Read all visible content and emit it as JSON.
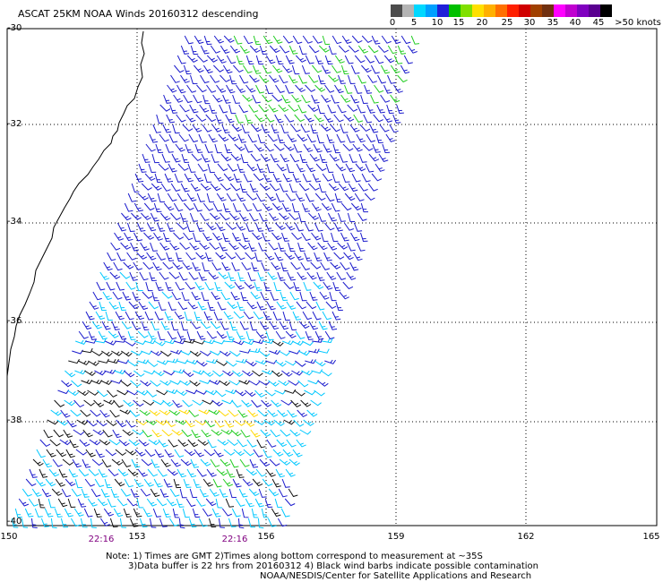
{
  "title": "ASCAT 25KM NOAA Winds 20160312 descending",
  "legend": {
    "colors": [
      "#4c4c4c",
      "#b4b4b4",
      "#00d8ff",
      "#00a0ff",
      "#2020d8",
      "#00c000",
      "#80e000",
      "#ffe000",
      "#ffb000",
      "#ff7000",
      "#ff2000",
      "#d00000",
      "#a04000",
      "#703010",
      "#ff00ff",
      "#c000d0",
      "#8000c0",
      "#5a0090",
      "#000000"
    ],
    "labels": [
      "0",
      "5",
      "10",
      "15",
      "20",
      "25",
      "30",
      "35",
      "40",
      "45",
      ">50 knots"
    ]
  },
  "axes": {
    "lat_labels": [
      "-30",
      "-32",
      "-34",
      "-36",
      "-38",
      "-40"
    ],
    "lon_labels": [
      "150",
      "153",
      "156",
      "159",
      "162",
      "165"
    ]
  },
  "times": [
    "22:16",
    "22:16"
  ],
  "notes": [
    "Note: 1) Times are GMT 2)Times along bottom correspond to measurement at ~35S",
    "3)Data buffer is 22 hrs from 20160312 4) Black wind barbs indicate possible contamination",
    "NOAA/NESDIS/Center for Satellite Applications and Research"
  ],
  "colors": {
    "grid": "#000000",
    "coast": "#000000",
    "barb_blue": "#1a1acc",
    "barb_cyan": "#00c8ff",
    "barb_green": "#22cc22",
    "barb_yellow": "#ffd800",
    "barb_black": "#111111"
  }
}
